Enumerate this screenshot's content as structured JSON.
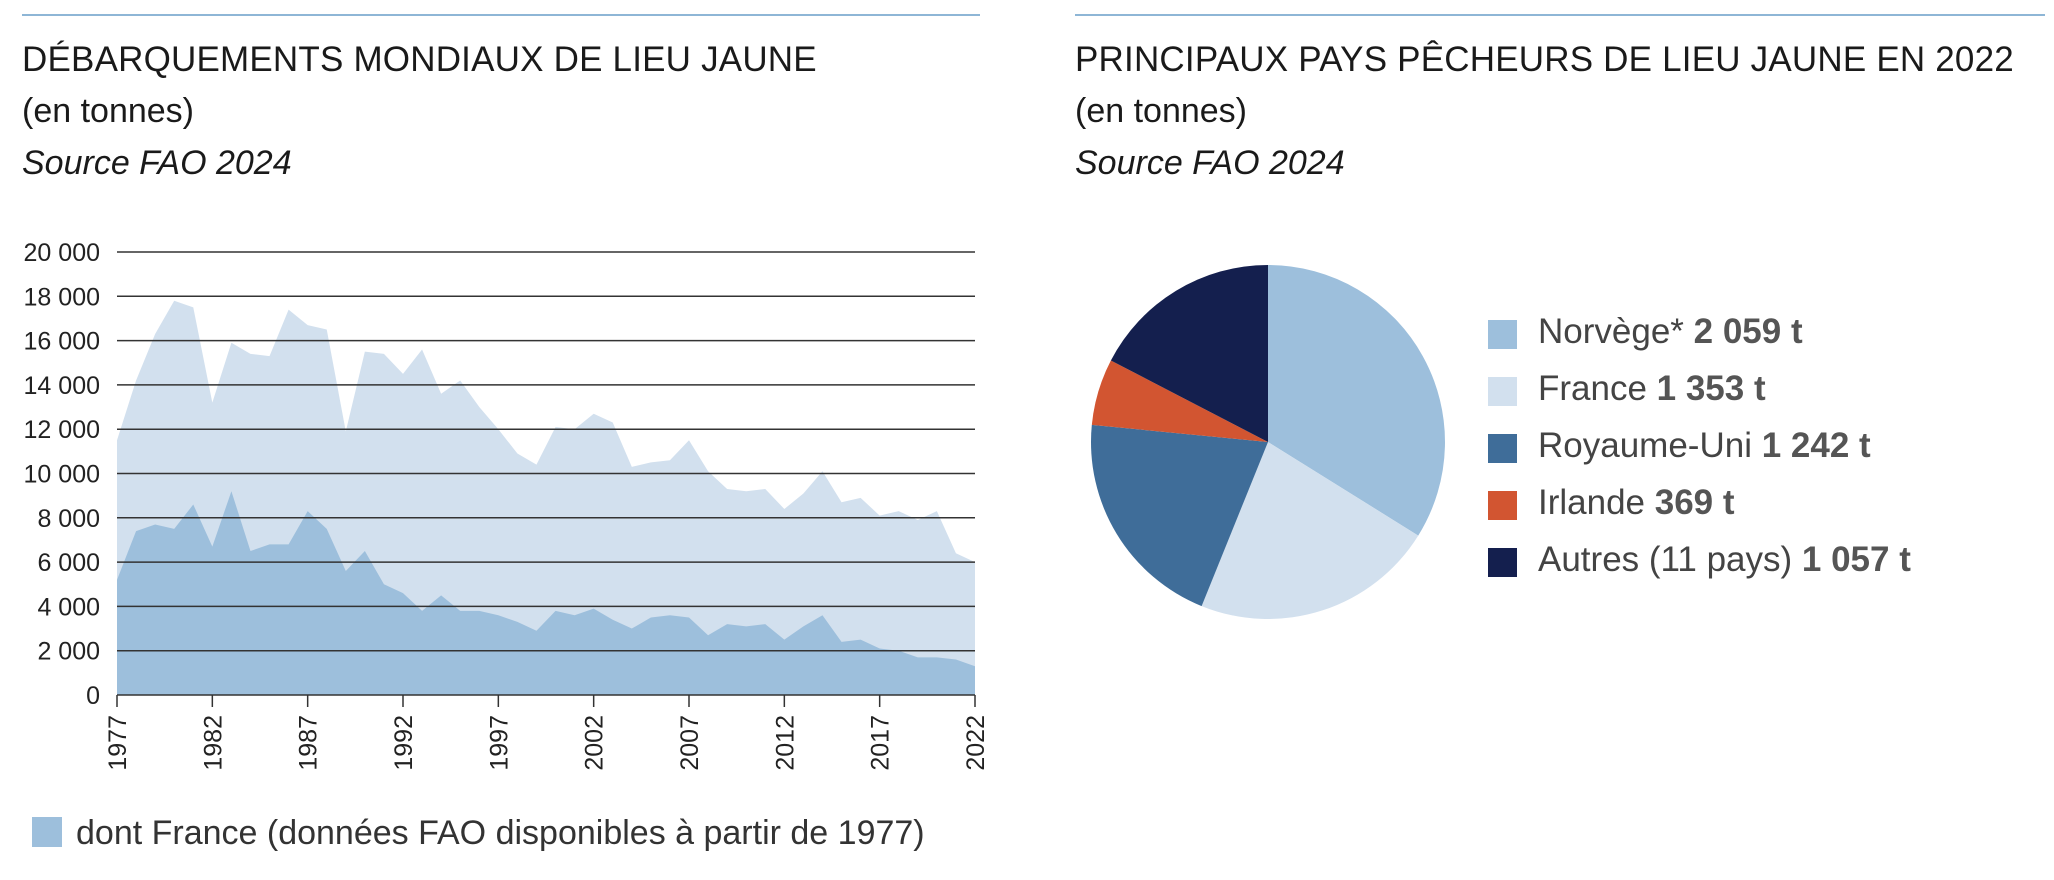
{
  "left": {
    "title": "DÉBARQUEMENTS MONDIAUX DE LIEU JAUNE",
    "subtitle": "(en tonnes)",
    "source": "Source FAO 2024",
    "legend_label": "dont France (données FAO disponibles à partir de 1977)"
  },
  "right": {
    "title": "PRINCIPAUX PAYS PÊCHEURS DE LIEU JAUNE EN 2022",
    "subtitle": "(en tonnes)",
    "source": "Source FAO 2024"
  },
  "colors": {
    "world": "#d2e0ee",
    "france": "#9dbfdc",
    "norvege": "#9dbfdc",
    "france_pie": "#d2e0ee",
    "royaume_uni": "#3f6d99",
    "irlande": "#d25531",
    "autres": "#141f4e",
    "rule": "#8eb6d6"
  },
  "chart_data": [
    {
      "type": "area",
      "title": "DÉBARQUEMENTS MONDIAUX DE LIEU JAUNE",
      "subtitle": "(en tonnes)",
      "ylim": [
        0,
        20000
      ],
      "y_ticks": [
        0,
        2000,
        4000,
        6000,
        8000,
        10000,
        12000,
        14000,
        16000,
        18000,
        20000
      ],
      "y_tick_labels": [
        "0",
        "2 000",
        "4 000",
        "6 000",
        "8 000",
        "10 000",
        "12 000",
        "14 000",
        "16 000",
        "18 000",
        "20 000"
      ],
      "x_tick_labels": [
        "1977",
        "1982",
        "1987",
        "1992",
        "1997",
        "2002",
        "2007",
        "2012",
        "2017",
        "2022"
      ],
      "grid": true,
      "x": [
        1977,
        1978,
        1979,
        1980,
        1981,
        1982,
        1983,
        1984,
        1985,
        1986,
        1987,
        1988,
        1989,
        1990,
        1991,
        1992,
        1993,
        1994,
        1995,
        1996,
        1997,
        1998,
        1999,
        2000,
        2001,
        2002,
        2003,
        2004,
        2005,
        2006,
        2007,
        2008,
        2009,
        2010,
        2011,
        2012,
        2013,
        2014,
        2015,
        2016,
        2017,
        2018,
        2019,
        2020,
        2021,
        2022
      ],
      "series": [
        {
          "values": [
            11500,
            14200,
            16300,
            17800,
            17500,
            13200,
            15900,
            15400,
            15300,
            17400,
            16700,
            16500,
            11900,
            15500,
            15400,
            14500,
            15600,
            13600,
            14200,
            13000,
            12000,
            10900,
            10400,
            12100,
            12000,
            12700,
            12300,
            10300,
            10500,
            10600,
            11500,
            10100,
            9300,
            9200,
            9300,
            8400,
            9100,
            10100,
            8700,
            8900,
            8100,
            8300,
            7900,
            8300,
            6400,
            6000
          ]
        },
        {
          "name": "dont France (données FAO disponibles à partir de 1977)",
          "values": [
            5200,
            7400,
            7700,
            7500,
            8600,
            6700,
            9200,
            6500,
            6800,
            6800,
            8300,
            7500,
            5600,
            6500,
            5000,
            4600,
            3800,
            4500,
            3800,
            3800,
            3600,
            3300,
            2900,
            3800,
            3600,
            3900,
            3400,
            3000,
            3500,
            3600,
            3500,
            2700,
            3200,
            3100,
            3200,
            2500,
            3100,
            3600,
            2400,
            2500,
            2100,
            2000,
            1700,
            1700,
            1600,
            1300
          ]
        }
      ]
    },
    {
      "type": "pie",
      "title": "PRINCIPAUX PAYS PÊCHEURS DE LIEU JAUNE EN 2022",
      "subtitle": "(en tonnes)",
      "legend_position": "right",
      "slices": [
        {
          "label": "Norvège*",
          "value": 2059,
          "display": "2 059 t",
          "color_key": "norvege"
        },
        {
          "label": "France",
          "value": 1353,
          "display": "1 353 t",
          "color_key": "france_pie"
        },
        {
          "label": "Royaume-Uni",
          "value": 1242,
          "display": "1 242 t",
          "color_key": "royaume_uni"
        },
        {
          "label": "Irlande",
          "value": 369,
          "display": "369 t",
          "color_key": "irlande"
        },
        {
          "label": "Autres (11 pays)",
          "value": 1057,
          "display": "1 057 t",
          "color_key": "autres"
        }
      ]
    }
  ]
}
